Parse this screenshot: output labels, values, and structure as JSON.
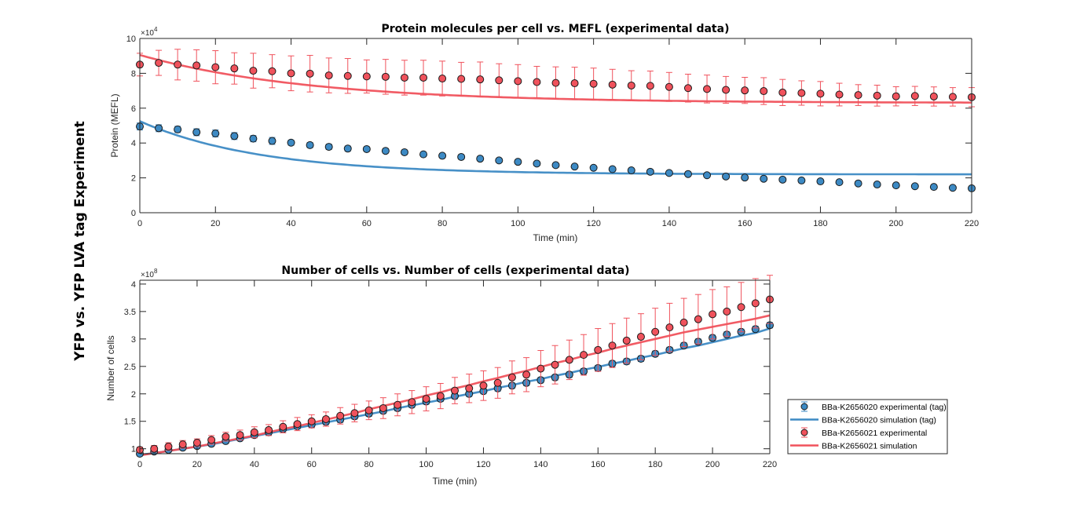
{
  "figure": {
    "super_title": "YFP vs. YFP LVA tag Experiment",
    "colors": {
      "blue": "#3d8ac4",
      "red": "#f0525c",
      "axis": "#262626",
      "marker_edge": "#1a1a1a"
    }
  },
  "legend": {
    "placement": "right-of-bottom-chart",
    "entries": [
      {
        "label": "BBa-K2656020 experimental (tag)",
        "kind": "errorbar-marker",
        "color": "blue"
      },
      {
        "label": "BBa-K2656020 simulation (tag)",
        "kind": "line",
        "color": "blue"
      },
      {
        "label": "BBa-K2656021 experimental",
        "kind": "errorbar-marker",
        "color": "red"
      },
      {
        "label": "BBa-K2656021 simulation",
        "kind": "line",
        "color": "red"
      }
    ]
  },
  "chart_data": [
    {
      "type": "line",
      "title": "Protein molecules per cell vs. MEFL (experimental data)",
      "xlabel": "Time (min)",
      "ylabel": "Protein (MEFL)",
      "y_exponent_label": "×10^4",
      "xlim": [
        0,
        220
      ],
      "ylim": [
        0,
        10
      ],
      "xticks": [
        0,
        20,
        40,
        60,
        80,
        100,
        120,
        140,
        160,
        180,
        200,
        220
      ],
      "yticks": [
        0,
        2,
        4,
        6,
        8,
        10
      ],
      "grid": false,
      "x": [
        0,
        5,
        10,
        15,
        20,
        25,
        30,
        35,
        40,
        45,
        50,
        55,
        60,
        65,
        70,
        75,
        80,
        85,
        90,
        95,
        100,
        105,
        110,
        115,
        120,
        125,
        130,
        135,
        140,
        145,
        150,
        155,
        160,
        165,
        170,
        175,
        180,
        185,
        190,
        195,
        200,
        205,
        210,
        215,
        220
      ],
      "series": [
        {
          "name": "BBa-K2656020 experimental (tag)",
          "kind": "errorbar",
          "color": "blue",
          "y": [
            4.95,
            4.85,
            4.78,
            4.62,
            4.55,
            4.4,
            4.25,
            4.12,
            4.02,
            3.88,
            3.78,
            3.68,
            3.65,
            3.55,
            3.47,
            3.35,
            3.27,
            3.2,
            3.1,
            3.0,
            2.92,
            2.82,
            2.73,
            2.65,
            2.58,
            2.5,
            2.43,
            2.35,
            2.28,
            2.22,
            2.15,
            2.08,
            2.02,
            1.95,
            1.9,
            1.85,
            1.8,
            1.75,
            1.68,
            1.62,
            1.57,
            1.52,
            1.48,
            1.43,
            1.4
          ],
          "err": [
            0.2,
            0.2,
            0.18,
            0.2,
            0.2,
            0.2,
            0.18,
            0.2,
            0.15,
            0.15,
            0.15,
            0.15,
            0.12,
            0.12,
            0.12,
            0.12,
            0.12,
            0.12,
            0.12,
            0.1,
            0.1,
            0.1,
            0.1,
            0.1,
            0.1,
            0.1,
            0.1,
            0.1,
            0.1,
            0.1,
            0.1,
            0.1,
            0.1,
            0.1,
            0.1,
            0.1,
            0.1,
            0.1,
            0.1,
            0.1,
            0.1,
            0.1,
            0.1,
            0.1,
            0.1
          ]
        },
        {
          "name": "BBa-K2656020 simulation (tag)",
          "kind": "line",
          "color": "blue",
          "model": {
            "y_inf": 2.2,
            "y0": 5.25,
            "tau": 32
          }
        },
        {
          "name": "BBa-K2656021 experimental",
          "kind": "errorbar",
          "color": "red",
          "y": [
            8.5,
            8.6,
            8.5,
            8.45,
            8.35,
            8.28,
            8.15,
            8.12,
            8.0,
            7.98,
            7.88,
            7.85,
            7.82,
            7.8,
            7.75,
            7.75,
            7.7,
            7.68,
            7.65,
            7.6,
            7.55,
            7.5,
            7.45,
            7.43,
            7.4,
            7.35,
            7.3,
            7.28,
            7.22,
            7.15,
            7.1,
            7.05,
            7.02,
            6.98,
            6.9,
            6.87,
            6.83,
            6.78,
            6.75,
            6.72,
            6.68,
            6.7,
            6.67,
            6.65,
            6.63
          ],
          "err": [
            0.65,
            0.72,
            0.88,
            0.9,
            0.95,
            0.9,
            1.0,
            0.95,
            1.0,
            1.05,
            1.0,
            1.0,
            0.95,
            1.0,
            1.0,
            1.0,
            1.0,
            0.95,
            1.0,
            0.95,
            0.95,
            0.9,
            0.92,
            0.92,
            0.9,
            0.88,
            0.85,
            0.85,
            0.83,
            0.8,
            0.8,
            0.77,
            0.75,
            0.77,
            0.75,
            0.7,
            0.7,
            0.65,
            0.6,
            0.6,
            0.55,
            0.55,
            0.55,
            0.53,
            0.55
          ]
        },
        {
          "name": "BBa-K2656021 simulation",
          "kind": "line",
          "color": "red",
          "model": {
            "y_inf": 6.3,
            "y0": 9.05,
            "tau": 45
          }
        }
      ]
    },
    {
      "type": "line",
      "title": "Number of cells vs. Number of cells (experimental data)",
      "xlabel": "Time (min)",
      "ylabel": "Number of cells",
      "y_exponent_label": "×10^8",
      "xlim": [
        0,
        220
      ],
      "ylim": [
        0.91,
        4.07
      ],
      "xticks": [
        0,
        20,
        40,
        60,
        80,
        100,
        120,
        140,
        160,
        180,
        200,
        220
      ],
      "yticks": [
        1,
        1.5,
        2,
        2.5,
        3,
        3.5,
        4
      ],
      "ytick_labels": [
        "1",
        "1.5",
        "2",
        "2.5",
        "3",
        "3.5",
        "4"
      ],
      "grid": false,
      "x": [
        0,
        5,
        10,
        15,
        20,
        25,
        30,
        35,
        40,
        45,
        50,
        55,
        60,
        65,
        70,
        75,
        80,
        85,
        90,
        95,
        100,
        105,
        110,
        115,
        120,
        125,
        130,
        135,
        140,
        145,
        150,
        155,
        160,
        165,
        170,
        175,
        180,
        185,
        190,
        195,
        200,
        205,
        210,
        215,
        220
      ],
      "series": [
        {
          "name": "BBa-K2656020 experimental (tag)",
          "kind": "errorbar",
          "color": "blue",
          "y": [
            0.91,
            0.95,
            0.98,
            1.02,
            1.05,
            1.09,
            1.14,
            1.19,
            1.25,
            1.3,
            1.36,
            1.41,
            1.44,
            1.49,
            1.53,
            1.59,
            1.64,
            1.69,
            1.74,
            1.8,
            1.86,
            1.91,
            1.96,
            2.0,
            2.05,
            2.1,
            2.15,
            2.2,
            2.25,
            2.3,
            2.35,
            2.41,
            2.47,
            2.55,
            2.59,
            2.64,
            2.73,
            2.8,
            2.88,
            2.95,
            3.02,
            3.08,
            3.13,
            3.18,
            3.25
          ],
          "err": [
            0.04,
            0.04,
            0.04,
            0.04,
            0.04,
            0.04,
            0.04,
            0.04,
            0.05,
            0.05,
            0.05,
            0.05,
            0.05,
            0.05,
            0.05,
            0.05,
            0.05,
            0.05,
            0.05,
            0.05,
            0.05,
            0.05,
            0.05,
            0.05,
            0.05,
            0.05,
            0.05,
            0.05,
            0.05,
            0.05,
            0.05,
            0.05,
            0.05,
            0.05,
            0.05,
            0.05,
            0.05,
            0.05,
            0.05,
            0.05,
            0.05,
            0.05,
            0.05,
            0.05,
            0.05
          ]
        },
        {
          "name": "BBa-K2656020 simulation (tag)",
          "kind": "line",
          "color": "blue",
          "y": [
            0.89,
            0.92,
            0.96,
            1.0,
            1.04,
            1.08,
            1.13,
            1.18,
            1.23,
            1.28,
            1.33,
            1.38,
            1.43,
            1.48,
            1.53,
            1.58,
            1.63,
            1.68,
            1.74,
            1.79,
            1.84,
            1.89,
            1.95,
            2.0,
            2.05,
            2.11,
            2.16,
            2.22,
            2.27,
            2.33,
            2.38,
            2.44,
            2.49,
            2.55,
            2.6,
            2.66,
            2.71,
            2.77,
            2.83,
            2.88,
            2.94,
            3.0,
            3.06,
            3.11,
            3.19
          ]
        },
        {
          "name": "BBa-K2656021 experimental",
          "kind": "errorbar",
          "color": "red",
          "y": [
            0.98,
            1.0,
            1.04,
            1.08,
            1.11,
            1.16,
            1.22,
            1.25,
            1.3,
            1.34,
            1.4,
            1.45,
            1.5,
            1.54,
            1.6,
            1.65,
            1.7,
            1.74,
            1.8,
            1.85,
            1.91,
            1.96,
            2.06,
            2.1,
            2.15,
            2.2,
            2.3,
            2.35,
            2.46,
            2.53,
            2.62,
            2.71,
            2.8,
            2.88,
            2.97,
            3.04,
            3.13,
            3.21,
            3.3,
            3.36,
            3.45,
            3.5,
            3.58,
            3.65,
            3.72
          ],
          "err": [
            0.05,
            0.06,
            0.07,
            0.07,
            0.07,
            0.08,
            0.08,
            0.09,
            0.1,
            0.1,
            0.11,
            0.12,
            0.12,
            0.13,
            0.15,
            0.16,
            0.17,
            0.19,
            0.2,
            0.21,
            0.22,
            0.23,
            0.24,
            0.26,
            0.27,
            0.28,
            0.3,
            0.31,
            0.33,
            0.35,
            0.36,
            0.37,
            0.39,
            0.4,
            0.41,
            0.42,
            0.43,
            0.44,
            0.44,
            0.45,
            0.45,
            0.45,
            0.45,
            0.45,
            0.44
          ]
        },
        {
          "name": "BBa-K2656021 simulation",
          "kind": "line",
          "color": "red",
          "y": [
            0.88,
            0.92,
            0.96,
            1.0,
            1.04,
            1.09,
            1.14,
            1.19,
            1.24,
            1.3,
            1.36,
            1.41,
            1.47,
            1.53,
            1.59,
            1.65,
            1.72,
            1.78,
            1.84,
            1.9,
            1.97,
            2.03,
            2.1,
            2.16,
            2.23,
            2.29,
            2.36,
            2.42,
            2.49,
            2.56,
            2.62,
            2.69,
            2.75,
            2.82,
            2.88,
            2.94,
            3.0,
            3.06,
            3.12,
            3.17,
            3.22,
            3.27,
            3.32,
            3.37,
            3.43
          ]
        }
      ]
    }
  ]
}
